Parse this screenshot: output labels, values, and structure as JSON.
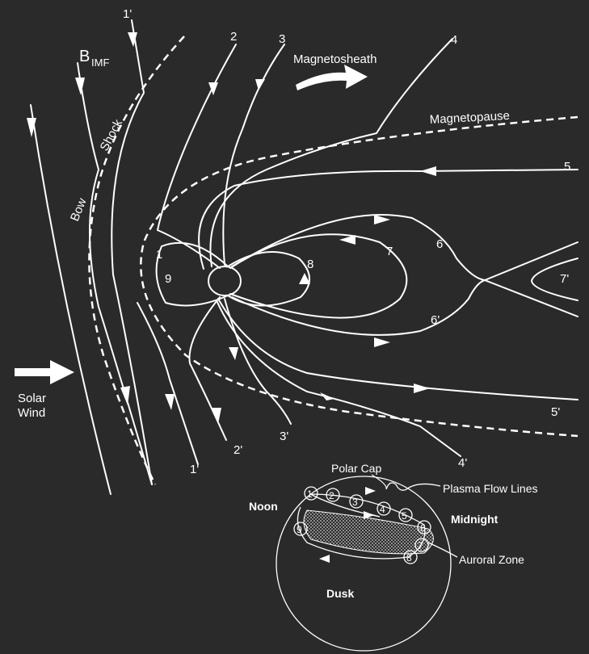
{
  "labels": {
    "b_imf": "B",
    "b_imf_sub": "IMF",
    "bow": "Bow",
    "shock": "Shock",
    "magnetosheath": "Magnetosheath",
    "magnetopause": "Magnetopause",
    "solar": "Solar",
    "wind": "Wind"
  },
  "field_lines": {
    "l1p_top": "1'",
    "l2_top": "2",
    "l3_top": "3",
    "l4_top": "4",
    "l5_top": "5",
    "l6": "6",
    "l7": "7",
    "l7p": "7'",
    "l8": "8",
    "l1": "1",
    "l9": "9",
    "l6p": "6'",
    "l5p": "5'",
    "l4p": "4'",
    "l3p": "3'",
    "l2p": "2'",
    "l1p_bottom": "1'"
  },
  "inset": {
    "polar_cap": "Polar Cap",
    "plasma_flow_lines": "Plasma Flow Lines",
    "noon": "Noon",
    "midnight": "Midnight",
    "auroral_zone": "Auroral Zone",
    "dusk": "Dusk",
    "markers": [
      "1",
      "2",
      "3",
      "4",
      "5",
      "6",
      "7",
      "8",
      "9"
    ]
  },
  "colors": {
    "background": "#2a2a2a",
    "foreground": "#ffffff"
  }
}
